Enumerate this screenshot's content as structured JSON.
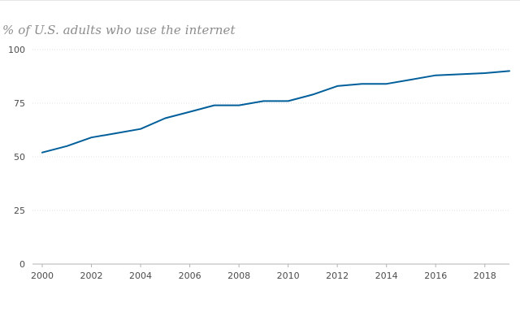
{
  "chart_data": {
    "type": "line",
    "title": "% of U.S. adults who use the internet",
    "xlabel": "",
    "ylabel": "",
    "x": [
      2000,
      2001,
      2002,
      2003,
      2004,
      2005,
      2006,
      2007,
      2008,
      2009,
      2010,
      2011,
      2012,
      2013,
      2014,
      2015,
      2016,
      2017,
      2018,
      2019
    ],
    "series": [
      {
        "values": [
          52,
          55,
          59,
          61,
          63,
          68,
          71,
          74,
          74,
          76,
          76,
          79,
          83,
          84,
          84,
          86,
          88,
          88.5,
          89,
          90
        ],
        "color": "#005f9b"
      }
    ],
    "xlim": [
      2000,
      2019
    ],
    "ylim": [
      0,
      100
    ],
    "xticks": [
      "2000",
      "2002",
      "2004",
      "2006",
      "2008",
      "2010",
      "2012",
      "2014",
      "2016",
      "2018"
    ],
    "yticks": [
      "0",
      "25",
      "50",
      "75",
      "100"
    ],
    "grid": "horizontal dotted",
    "legend": "none",
    "colors": {
      "line": "#005f9b",
      "grid": "#dcdcdc",
      "axis": "#b3b3b3",
      "title": "#8c8c8c",
      "tick_text": "#4d4d4d"
    }
  }
}
